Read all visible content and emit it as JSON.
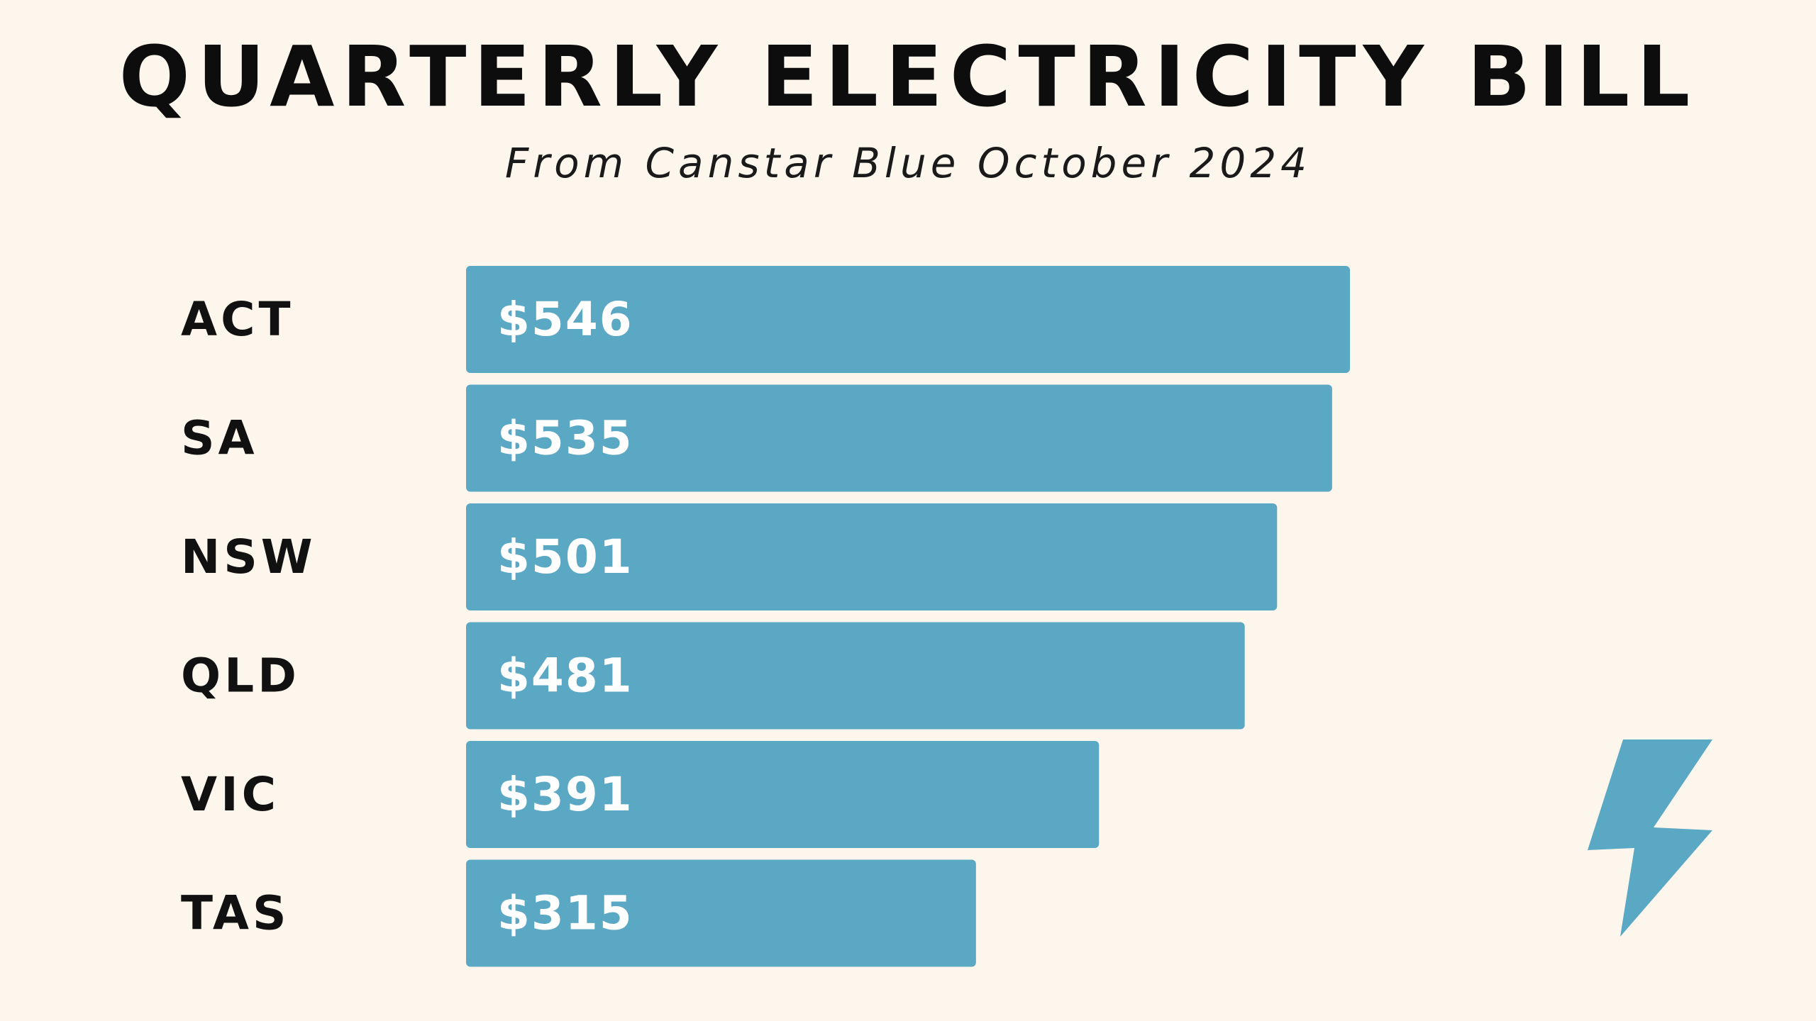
{
  "colors": {
    "background": "#fdf6ec",
    "bar": "#5ba8c5",
    "text": "#111111",
    "bar_label": "#ffffff"
  },
  "icons": {
    "decoration": "lightning-bolt-icon"
  },
  "chart_data": {
    "type": "bar",
    "orientation": "horizontal",
    "title": "QUARTERLY ELECTRICITY BILL",
    "subtitle": "From Canstar Blue October 2024",
    "categories": [
      "ACT",
      "SA",
      "NSW",
      "QLD",
      "VIC",
      "TAS"
    ],
    "values": [
      546,
      535,
      501,
      481,
      391,
      315
    ],
    "value_labels": [
      "$546",
      "$535",
      "$501",
      "$481",
      "$391",
      "$315"
    ],
    "xlim": [
      0,
      546
    ],
    "grid": false,
    "legend": "none"
  }
}
